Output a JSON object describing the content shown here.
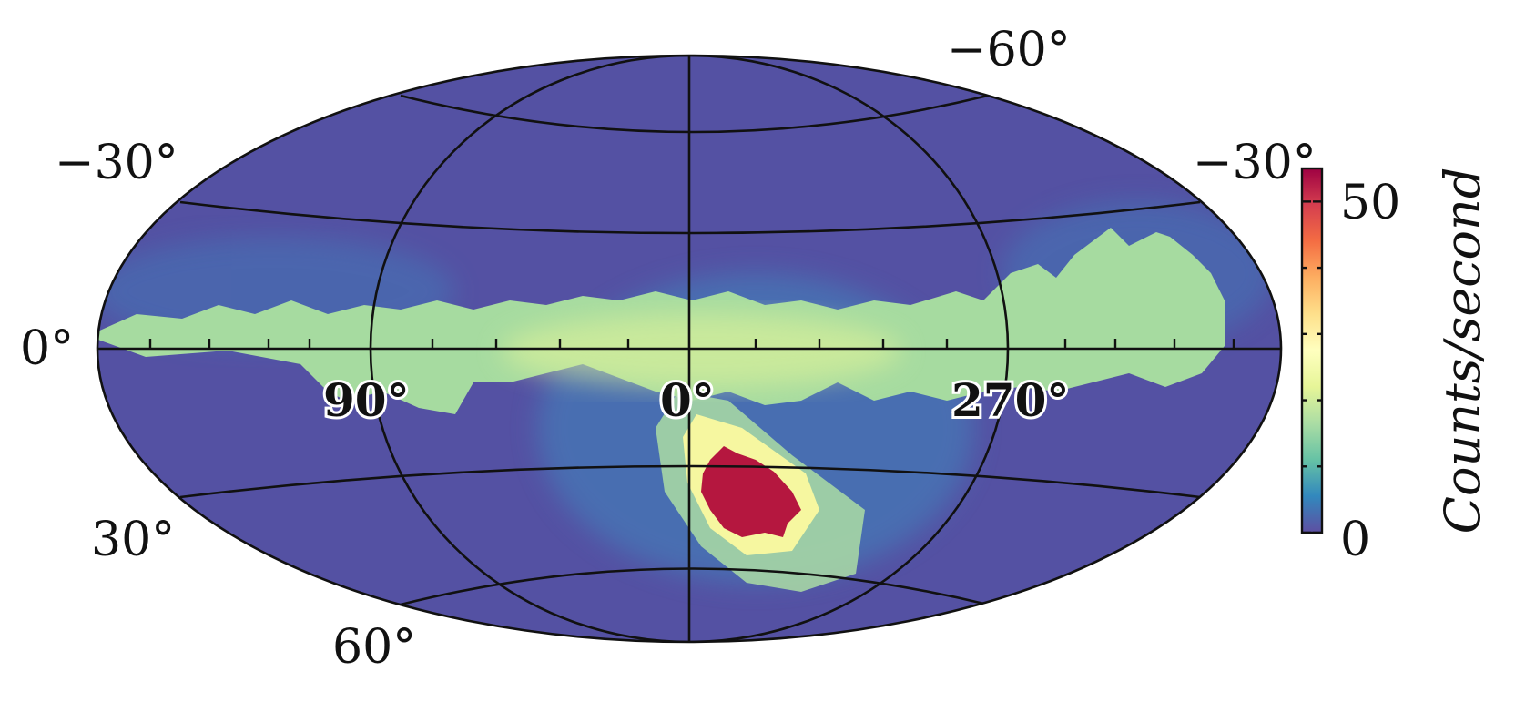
{
  "chart_data": {
    "type": "heatmap",
    "projection": "aitoff / hammer all-sky (ellipse)",
    "title": "",
    "colorbar": {
      "label": "Counts/second",
      "range": [
        0,
        55
      ],
      "tick_labels": [
        "50",
        "0"
      ],
      "ticks": [
        50,
        0
      ],
      "minor_ticks": [
        10,
        20,
        30,
        40
      ],
      "colormap": "Spectral_r",
      "colors": [
        "#5e4fa2",
        "#3288bd",
        "#66c2a5",
        "#abdda4",
        "#e6f598",
        "#ffffbf",
        "#fee08b",
        "#fdae61",
        "#f46d43",
        "#d53e4f",
        "#9e0142"
      ]
    },
    "latitude_labels": [
      "−60°",
      "−30°",
      "−30°",
      "0°",
      "30°",
      "60°"
    ],
    "longitude_labels": [
      "90°",
      "0°",
      "270°"
    ],
    "graticule": {
      "lat_step_deg": 30,
      "lon_step_deg": 90,
      "grid": true
    },
    "features": [
      {
        "name": "background",
        "value": 2
      },
      {
        "name": "galactic-plane-band",
        "value": 20
      },
      {
        "name": "hotspot",
        "value": 55,
        "lon_deg": 350,
        "lat_deg": 35
      }
    ]
  }
}
